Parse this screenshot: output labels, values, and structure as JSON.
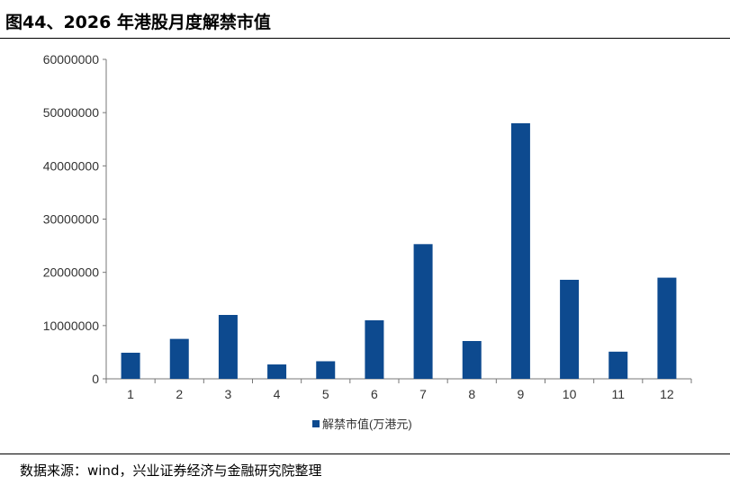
{
  "figure": {
    "title": "图44、2026 年港股月度解禁市值",
    "source": "数据来源：wind，兴业证券经济与金融研究院整理"
  },
  "colors": {
    "bar": "#0d4a8f",
    "axis": "#777777",
    "text": "#333333"
  },
  "chart_data": {
    "type": "bar",
    "categories": [
      "1",
      "2",
      "3",
      "4",
      "5",
      "6",
      "7",
      "8",
      "9",
      "10",
      "11",
      "12"
    ],
    "series": [
      {
        "name": "解禁市值(万港元)",
        "values": [
          4900000,
          7500000,
          12000000,
          2700000,
          3300000,
          11000000,
          25300000,
          7100000,
          48000000,
          18600000,
          5100000,
          19000000
        ]
      }
    ],
    "yticks": [
      "0",
      "10000000",
      "20000000",
      "30000000",
      "40000000",
      "50000000",
      "60000000"
    ],
    "ylim": [
      0,
      60000000
    ],
    "grid": false,
    "legend_position": "bottom"
  }
}
